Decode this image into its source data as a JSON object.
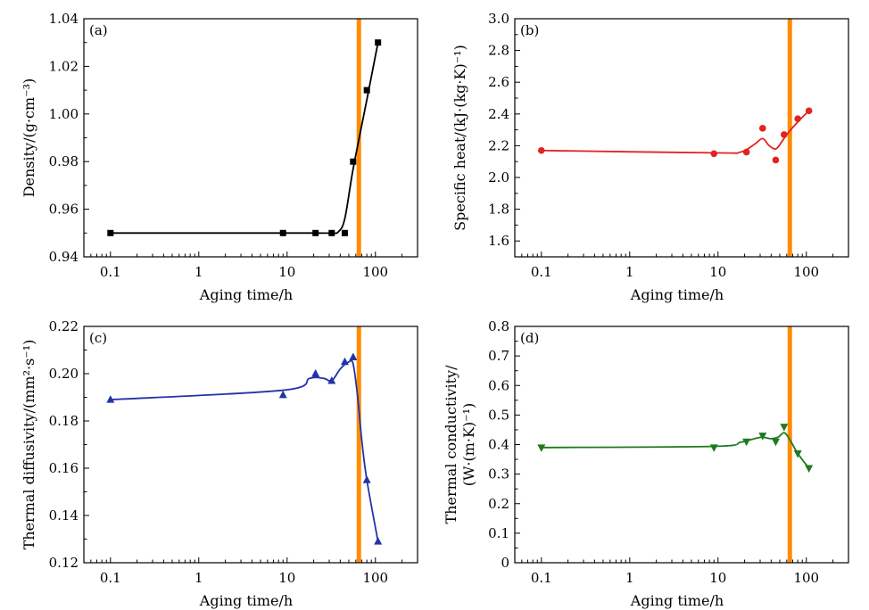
{
  "chart_data": [
    {
      "type": "line",
      "panel_label": "(a)",
      "xlabel": "Aging time/h",
      "ylabel": [
        "Density/(g·cm⁻³)"
      ],
      "x_scale": "log",
      "xlim": [
        0.05,
        300
      ],
      "ylim": [
        0.94,
        1.04
      ],
      "x_ticks": [
        0.1,
        1,
        10,
        100
      ],
      "x_tick_labels": [
        "0.1",
        "1",
        "10",
        "100"
      ],
      "y_ticks": [
        0.94,
        0.96,
        0.98,
        1.0,
        1.02,
        1.04
      ],
      "y_tick_labels": [
        "0.94",
        "0.96",
        "0.98",
        "1.00",
        "1.02",
        "1.04"
      ],
      "series": [
        {
          "color": "#000000",
          "marker": "square",
          "x": [
            0.1,
            9,
            21,
            32,
            45,
            56,
            80,
            107
          ],
          "y": [
            0.95,
            0.95,
            0.95,
            0.95,
            0.95,
            0.98,
            1.01,
            1.03
          ],
          "curve_x": [
            0.1,
            9,
            21,
            32,
            38,
            45,
            56,
            80,
            107
          ],
          "curve_y": [
            0.95,
            0.95,
            0.95,
            0.95,
            0.9505,
            0.956,
            0.977,
            1.006,
            1.03
          ]
        }
      ],
      "vertical_line": {
        "x": 65,
        "color": "#ff8c00"
      }
    },
    {
      "type": "line",
      "panel_label": "(b)",
      "xlabel": "Aging time/h",
      "ylabel": [
        "Specific heat/(kJ·(kg·K)⁻¹)"
      ],
      "x_scale": "log",
      "xlim": [
        0.05,
        300
      ],
      "ylim": [
        1.5,
        3.0
      ],
      "x_ticks": [
        0.1,
        1,
        10,
        100
      ],
      "x_tick_labels": [
        "0.1",
        "1",
        "10",
        "100"
      ],
      "y_ticks": [
        1.6,
        1.8,
        2.0,
        2.2,
        2.4,
        2.6,
        2.8,
        3.0
      ],
      "y_tick_labels": [
        "1.6",
        "1.8",
        "2.0",
        "2.2",
        "2.4",
        "2.6",
        "2.8",
        "3.0"
      ],
      "series": [
        {
          "color": "#e32222",
          "marker": "circle",
          "x": [
            0.1,
            9,
            21,
            32,
            45,
            56,
            80,
            107
          ],
          "y": [
            2.17,
            2.15,
            2.16,
            2.31,
            2.11,
            2.27,
            2.37,
            2.42
          ],
          "curve_x": [
            0.1,
            9,
            18,
            26,
            32,
            38,
            45,
            52,
            60,
            80,
            107
          ],
          "curve_y": [
            2.17,
            2.155,
            2.16,
            2.21,
            2.245,
            2.2,
            2.18,
            2.22,
            2.27,
            2.35,
            2.42
          ]
        }
      ],
      "vertical_line": {
        "x": 65,
        "color": "#ff8c00"
      }
    },
    {
      "type": "line",
      "panel_label": "(c)",
      "xlabel": "Aging time/h",
      "ylabel": [
        "Thermal diffusivity/(mm²·s⁻¹)"
      ],
      "x_scale": "log",
      "xlim": [
        0.05,
        300
      ],
      "ylim": [
        0.12,
        0.22
      ],
      "x_ticks": [
        0.1,
        1,
        10,
        100
      ],
      "x_tick_labels": [
        "0.1",
        "1",
        "10",
        "100"
      ],
      "y_ticks": [
        0.12,
        0.14,
        0.16,
        0.18,
        0.2,
        0.22
      ],
      "y_tick_labels": [
        "0.12",
        "0.14",
        "0.16",
        "0.18",
        "0.20",
        "0.22"
      ],
      "series": [
        {
          "color": "#2233aa",
          "marker": "triangle-up",
          "x": [
            0.1,
            9,
            21,
            32,
            45,
            56,
            80,
            107
          ],
          "y": [
            0.189,
            0.191,
            0.2,
            0.197,
            0.205,
            0.207,
            0.155,
            0.129
          ],
          "curve_x": [
            0.1,
            9,
            18,
            26,
            32,
            40,
            50,
            56,
            63,
            70,
            80,
            107
          ],
          "curve_y": [
            0.189,
            0.193,
            0.198,
            0.198,
            0.197,
            0.202,
            0.205,
            0.204,
            0.19,
            0.172,
            0.155,
            0.129
          ]
        }
      ],
      "vertical_line": {
        "x": 65,
        "color": "#ff8c00"
      }
    },
    {
      "type": "line",
      "panel_label": "(d)",
      "xlabel": "Aging time/h",
      "ylabel": [
        "Thermal conductivity/",
        "(W·(m·K)⁻¹)"
      ],
      "x_scale": "log",
      "xlim": [
        0.05,
        300
      ],
      "ylim": [
        0.0,
        0.8
      ],
      "x_ticks": [
        0.1,
        1,
        10,
        100
      ],
      "x_tick_labels": [
        "0.1",
        "1",
        "10",
        "100"
      ],
      "y_ticks": [
        0.0,
        0.1,
        0.2,
        0.3,
        0.4,
        0.5,
        0.6,
        0.7,
        0.8
      ],
      "y_tick_labels": [
        "0",
        "0.1",
        "0.2",
        "0.3",
        "0.4",
        "0.5",
        "0.6",
        "0.7",
        "0.8"
      ],
      "series": [
        {
          "color": "#1f7a1f",
          "marker": "triangle-down",
          "x": [
            0.1,
            9,
            21,
            32,
            45,
            56,
            80,
            107
          ],
          "y": [
            0.39,
            0.39,
            0.41,
            0.43,
            0.41,
            0.46,
            0.37,
            0.32
          ],
          "curve_x": [
            0.1,
            9,
            18,
            26,
            32,
            40,
            48,
            56,
            64,
            80,
            107
          ],
          "curve_y": [
            0.39,
            0.394,
            0.408,
            0.42,
            0.425,
            0.42,
            0.425,
            0.44,
            0.42,
            0.37,
            0.32
          ]
        }
      ],
      "vertical_line": {
        "x": 65,
        "color": "#ff8c00"
      }
    }
  ]
}
